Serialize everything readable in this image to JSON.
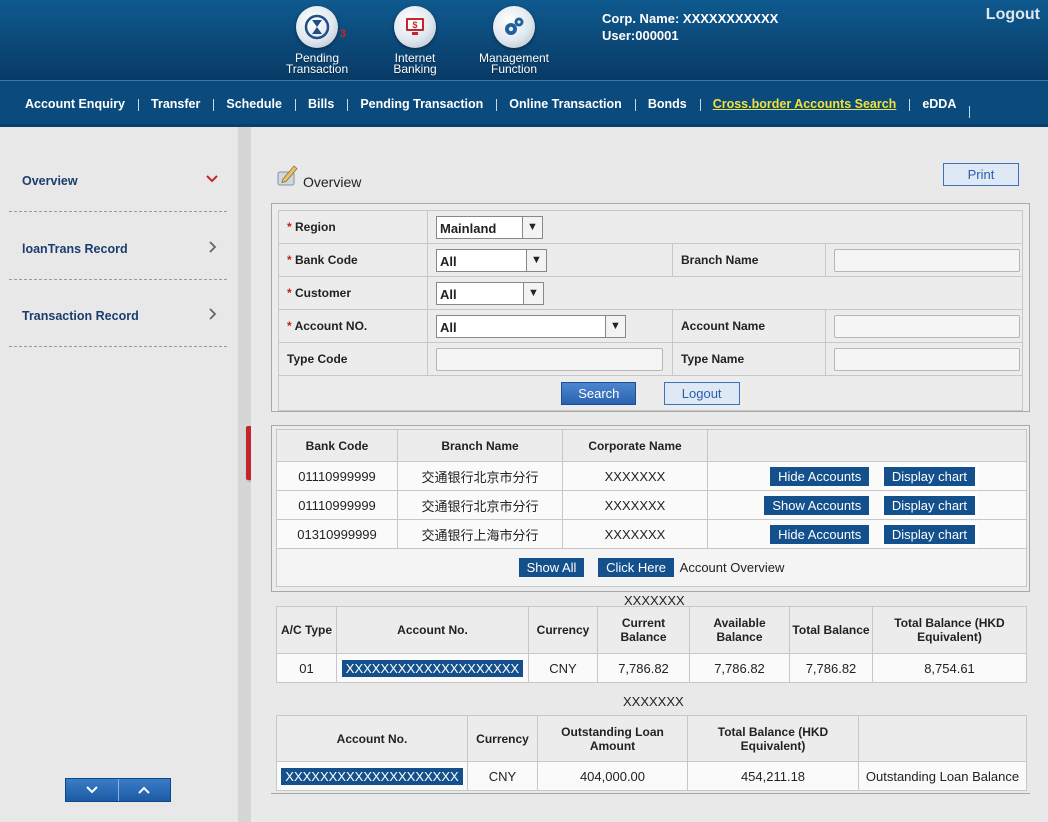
{
  "header": {
    "icons": [
      {
        "label": "Pending\nTransaction",
        "badge": "3",
        "icon": "hourglass-icon"
      },
      {
        "label": "Internet\nBanking",
        "icon": "monitor-dollar-icon"
      },
      {
        "label": "Management\nFunction",
        "icon": "gears-icon"
      }
    ],
    "corp_name": "Corp. Name: XXXXXXXXXXX",
    "user": "User:000001",
    "logout": "Logout"
  },
  "nav": {
    "items": [
      "Account Enquiry",
      "Transfer",
      "Schedule",
      "Bills",
      "Pending Transaction",
      "Online Transaction",
      "Bonds",
      "Cross.border Accounts Search",
      "eDDA"
    ],
    "active_index": 7
  },
  "sidebar": {
    "items": [
      {
        "label": "Overview",
        "chevron": "chevron-down-icon"
      },
      {
        "label": "loanTrans Record",
        "chevron": "chevron-right-icon"
      },
      {
        "label": "Transaction Record",
        "chevron": "chevron-right-icon"
      }
    ],
    "scroll_down": "⌄",
    "scroll_up": "⌃"
  },
  "main": {
    "title": "Overview",
    "print": "Print",
    "form": {
      "region_label": "Region",
      "region_value": "Mainland",
      "bank_code_label": "Bank Code",
      "bank_code_value": "All",
      "branch_name_label": "Branch Name",
      "customer_label": "Customer",
      "customer_value": "All",
      "account_no_label": "Account NO.",
      "account_no_value": "All",
      "account_name_label": "Account Name",
      "type_code_label": "Type Code",
      "type_name_label": "Type Name",
      "search": "Search",
      "logout": "Logout"
    },
    "banks": {
      "headers": [
        "Bank Code",
        "Branch Name",
        "Corporate Name"
      ],
      "rows": [
        {
          "code": "01110999999",
          "branch": "交通银行北京市分行",
          "corp": "XXXXXXX",
          "toggle": "Hide Accounts",
          "chart": "Display chart"
        },
        {
          "code": "01110999999",
          "branch": "交通银行北京市分行",
          "corp": "XXXXXXX",
          "toggle": "Show Accounts",
          "chart": "Display chart"
        },
        {
          "code": "01310999999",
          "branch": "交通银行上海市分行",
          "corp": "XXXXXXX",
          "toggle": "Hide Accounts",
          "chart": "Display chart"
        }
      ],
      "show_all": "Show All",
      "click_here": "Click Here",
      "overview_text": "Account Overview"
    },
    "deposit": {
      "title": "XXXXXXX",
      "headers": [
        "A/C Type",
        "Account No.",
        "Currency",
        "Current Balance",
        "Available Balance",
        "Total Balance",
        "Total Balance (HKD Equivalent)"
      ],
      "row": [
        "01",
        "XXXXXXXXXXXXXXXXXXXX",
        "CNY",
        "7,786.82",
        "7,786.82",
        "7,786.82",
        "8,754.61"
      ]
    },
    "loan": {
      "title": "XXXXXXX",
      "headers": [
        "Account No.",
        "Currency",
        "Outstanding Loan Amount",
        "Total Balance (HKD Equivalent)",
        ""
      ],
      "row": [
        "XXXXXXXXXXXXXXXXXXXX",
        "CNY",
        "404,000.00",
        "454,211.18",
        "Outstanding Loan Balance"
      ]
    }
  }
}
